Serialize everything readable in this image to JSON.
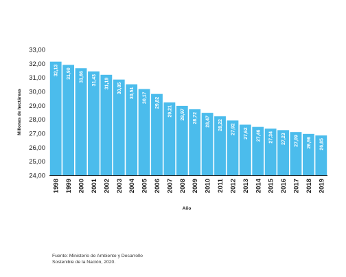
{
  "chart_data": {
    "type": "bar",
    "title": "",
    "xlabel": "Año",
    "ylabel": "Millones de hectáreas",
    "ylim": [
      24,
      33
    ],
    "yticks": [
      "24,00",
      "25,00",
      "26,00",
      "27,00",
      "28,00",
      "29,00",
      "30,00",
      "31,00",
      "32,00",
      "33,00"
    ],
    "categories": [
      "1998",
      "1999",
      "2000",
      "2001",
      "2002",
      "2003",
      "2004",
      "2005",
      "2006",
      "2007",
      "2008",
      "2009",
      "2010",
      "2011",
      "2012",
      "2013",
      "2014",
      "2015",
      "2016",
      "2017",
      "2018",
      "2019"
    ],
    "values": [
      32.13,
      31.9,
      31.66,
      31.43,
      31.19,
      30.85,
      30.51,
      30.17,
      29.82,
      29.21,
      28.97,
      28.72,
      28.47,
      28.22,
      27.92,
      27.62,
      27.46,
      27.34,
      27.23,
      27.09,
      26.96,
      26.85
    ],
    "value_labels": [
      "32,13",
      "31,90",
      "31,66",
      "31,43",
      "31,19",
      "30,85",
      "30,51",
      "30,17",
      "29,82",
      "29,21",
      "28,97",
      "28,72",
      "28,47",
      "28,22",
      "27,92",
      "27,62",
      "27,46",
      "27,34",
      "27,23",
      "27,09",
      "26,96",
      "26,85"
    ],
    "bar_color": "#4bbcec",
    "grid": false,
    "legend": "none"
  },
  "source": {
    "line1": "Fuente: Ministerio de Ambiente y Desarrollo",
    "line2": "Sostenible de la Nación, 2020."
  }
}
